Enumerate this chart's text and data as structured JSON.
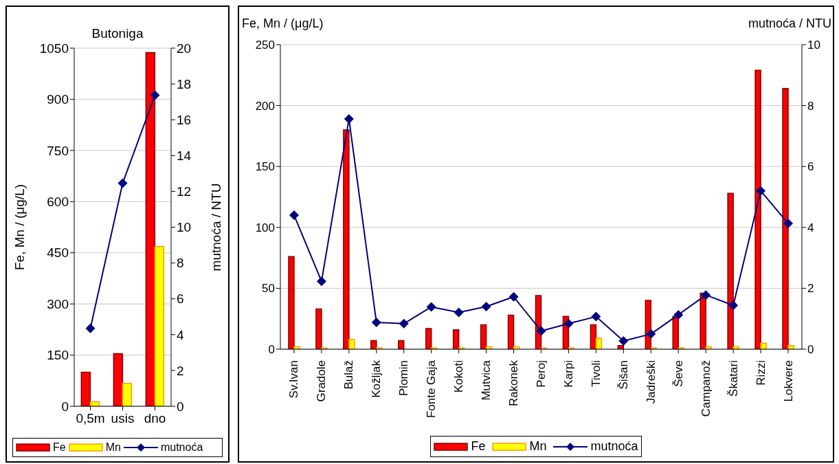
{
  "chart_data": [
    {
      "type": "bar",
      "title": "Butoniga",
      "categories": [
        "0,5m",
        "usis",
        "dno"
      ],
      "series": [
        {
          "name": "Fe",
          "color": "#ff0000",
          "values": [
            100,
            154,
            1037
          ]
        },
        {
          "name": "Mn",
          "color": "#ffff00",
          "values": [
            13,
            67,
            468
          ]
        },
        {
          "name": "mutnoća",
          "type": "line",
          "axis": "y2",
          "color": "#000080",
          "values": [
            4.35,
            12.46,
            17.37
          ]
        }
      ],
      "ylabel": "Fe, Mn / (μg/L)",
      "y2label": "mutnoća / NTU",
      "ylim": [
        0,
        1050
      ],
      "yticks": [
        0,
        150,
        300,
        450,
        600,
        750,
        900,
        1050
      ],
      "y2lim": [
        0,
        20
      ],
      "y2ticks": [
        0,
        2,
        4,
        6,
        8,
        10,
        12,
        14,
        16,
        18,
        20
      ],
      "grid": "y",
      "legend": "bottom",
      "marker": "diamond",
      "line_style": "solid"
    },
    {
      "type": "bar",
      "categories": [
        "Sv.Ivan",
        "Gradole",
        "Bulaž",
        "Kožljak",
        "Plomin",
        "Fonte Gaja",
        "Kokoti",
        "Mutvica",
        "Rakonek",
        "Peroj",
        "Karpi",
        "Tivoli",
        "Šišan",
        "Jadreški",
        "Ševe",
        "Campanož",
        "Škatari",
        "Rizzi",
        "Lokvere"
      ],
      "series": [
        {
          "name": "Fe",
          "color": "#ff0000",
          "values": [
            76,
            33,
            180,
            7,
            7,
            17,
            16,
            20,
            28,
            44,
            27,
            20,
            3,
            40,
            27,
            46,
            128,
            229,
            214
          ]
        },
        {
          "name": "Mn",
          "color": "#ffff00",
          "values": [
            2,
            1,
            8,
            1,
            0,
            1,
            1,
            2,
            2,
            1,
            1,
            9,
            0,
            1,
            1,
            2,
            2,
            5,
            3
          ]
        },
        {
          "name": "mutnoća",
          "type": "line",
          "axis": "y2",
          "color": "#000080",
          "values": [
            4.4,
            2.23,
            7.56,
            0.88,
            0.84,
            1.39,
            1.21,
            1.4,
            1.72,
            0.6,
            0.84,
            1.07,
            0.27,
            0.5,
            1.13,
            1.78,
            1.44,
            5.2,
            4.13
          ]
        }
      ],
      "ylabel": "Fe, Mn / (μg/L)",
      "y2label": "mutnoća / NTU",
      "ylim": [
        0,
        250
      ],
      "yticks": [
        0,
        50,
        100,
        150,
        200,
        250
      ],
      "y2lim": [
        0,
        10
      ],
      "y2ticks": [
        0,
        2,
        4,
        6,
        8,
        10
      ],
      "grid": "y",
      "legend": "bottom",
      "marker": "diamond",
      "line_style": "solid"
    }
  ]
}
